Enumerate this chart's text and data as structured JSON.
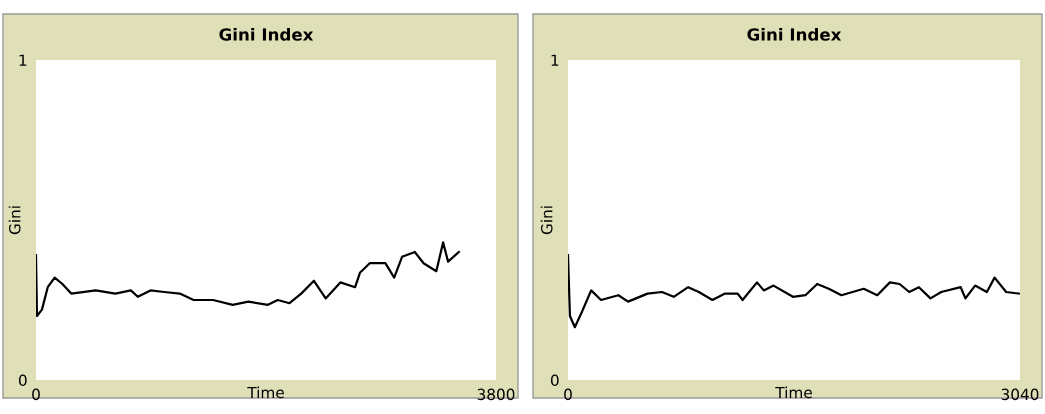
{
  "chart_data": [
    {
      "type": "line",
      "title": "Gini Index",
      "xlabel": "Time",
      "ylabel": "Gini",
      "xlim": [
        0,
        3800
      ],
      "ylim": [
        0,
        1
      ],
      "xticks": [
        0,
        3800
      ],
      "yticks": [
        0,
        1
      ],
      "grid": false,
      "legend": false,
      "marker": "none",
      "line_style": "solid",
      "series": [
        {
          "color": "#000000",
          "x": [
            0,
            8,
            49,
            97,
            154,
            218,
            291,
            493,
            655,
            784,
            841,
            946,
            1059,
            1188,
            1302,
            1463,
            1625,
            1754,
            1916,
            1997,
            2094,
            2191,
            2296,
            2393,
            2514,
            2636,
            2676,
            2757,
            2886,
            2959,
            3024,
            3129,
            3202,
            3307,
            3363,
            3404,
            3493
          ],
          "values": [
            0.39,
            0.2,
            0.22,
            0.29,
            0.32,
            0.3,
            0.27,
            0.28,
            0.27,
            0.28,
            0.26,
            0.28,
            0.275,
            0.27,
            0.25,
            0.25,
            0.235,
            0.245,
            0.235,
            0.25,
            0.24,
            0.27,
            0.31,
            0.255,
            0.305,
            0.29,
            0.335,
            0.365,
            0.365,
            0.32,
            0.385,
            0.4,
            0.365,
            0.34,
            0.43,
            0.37,
            0.4
          ]
        }
      ]
    },
    {
      "type": "line",
      "title": "Gini Index",
      "xlabel": "Time",
      "ylabel": "Gini",
      "xlim": [
        0,
        3040
      ],
      "ylim": [
        0,
        1
      ],
      "xticks": [
        0,
        3040
      ],
      "yticks": [
        0,
        1
      ],
      "grid": false,
      "legend": false,
      "marker": "none",
      "line_style": "solid",
      "series": [
        {
          "color": "#000000",
          "x": [
            0,
            13,
            46,
            91,
            156,
            222,
            339,
            404,
            535,
            632,
            711,
            808,
            880,
            971,
            1056,
            1141,
            1174,
            1271,
            1317,
            1382,
            1513,
            1597,
            1676,
            1754,
            1839,
            1989,
            2080,
            2165,
            2230,
            2295,
            2360,
            2438,
            2510,
            2641,
            2673,
            2738,
            2817,
            2869,
            2947,
            3032
          ],
          "values": [
            0.39,
            0.2,
            0.165,
            0.21,
            0.28,
            0.25,
            0.265,
            0.245,
            0.27,
            0.275,
            0.26,
            0.29,
            0.275,
            0.25,
            0.27,
            0.27,
            0.25,
            0.305,
            0.28,
            0.295,
            0.26,
            0.265,
            0.3,
            0.285,
            0.265,
            0.285,
            0.265,
            0.305,
            0.3,
            0.275,
            0.29,
            0.255,
            0.275,
            0.29,
            0.255,
            0.295,
            0.275,
            0.32,
            0.275,
            0.27
          ]
        }
      ]
    }
  ]
}
